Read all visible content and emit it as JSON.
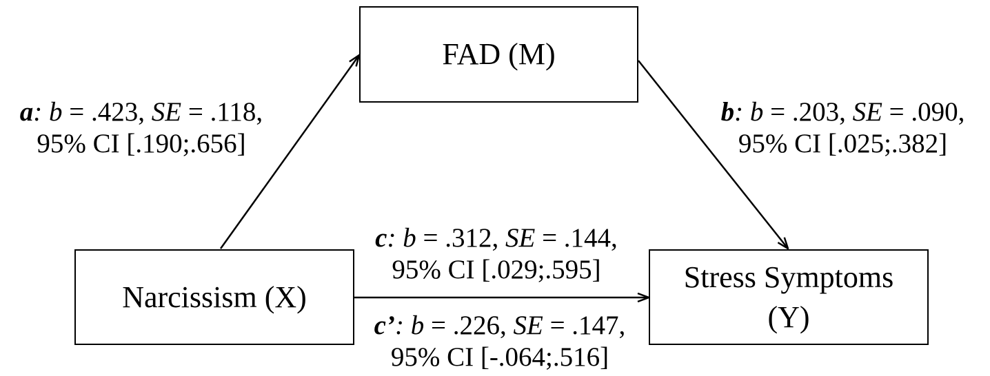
{
  "nodes": {
    "mediator": "FAD (M)",
    "predictor": "Narcissism (X)",
    "outcome_line1": "Stress Symptoms",
    "outcome_line2": "(Y)"
  },
  "paths": {
    "a": {
      "label": "a",
      "b_symbol": "b",
      "b_value": " = .423, ",
      "se_symbol": "SE",
      "se_value": " = .118,",
      "ci": "95% CI [.190;.656]"
    },
    "b": {
      "label": "b",
      "b_symbol": "b",
      "b_value": " = .203, ",
      "se_symbol": "SE",
      "se_value": " = .090,",
      "ci": "95% CI [.025;.382]"
    },
    "c": {
      "label": "c",
      "b_symbol": "b",
      "b_value": " = .312, ",
      "se_symbol": "SE",
      "se_value": " = .144,",
      "ci": "95% CI [.029;.595]"
    },
    "c_prime": {
      "label": "c’",
      "b_symbol": "b",
      "b_value": " = .226, ",
      "se_symbol": "SE",
      "se_value": " = .147,",
      "ci": "95% CI [-.064;.516]"
    }
  },
  "colors": {
    "stroke": "#000000",
    "background": "#ffffff",
    "text": "#000000"
  }
}
